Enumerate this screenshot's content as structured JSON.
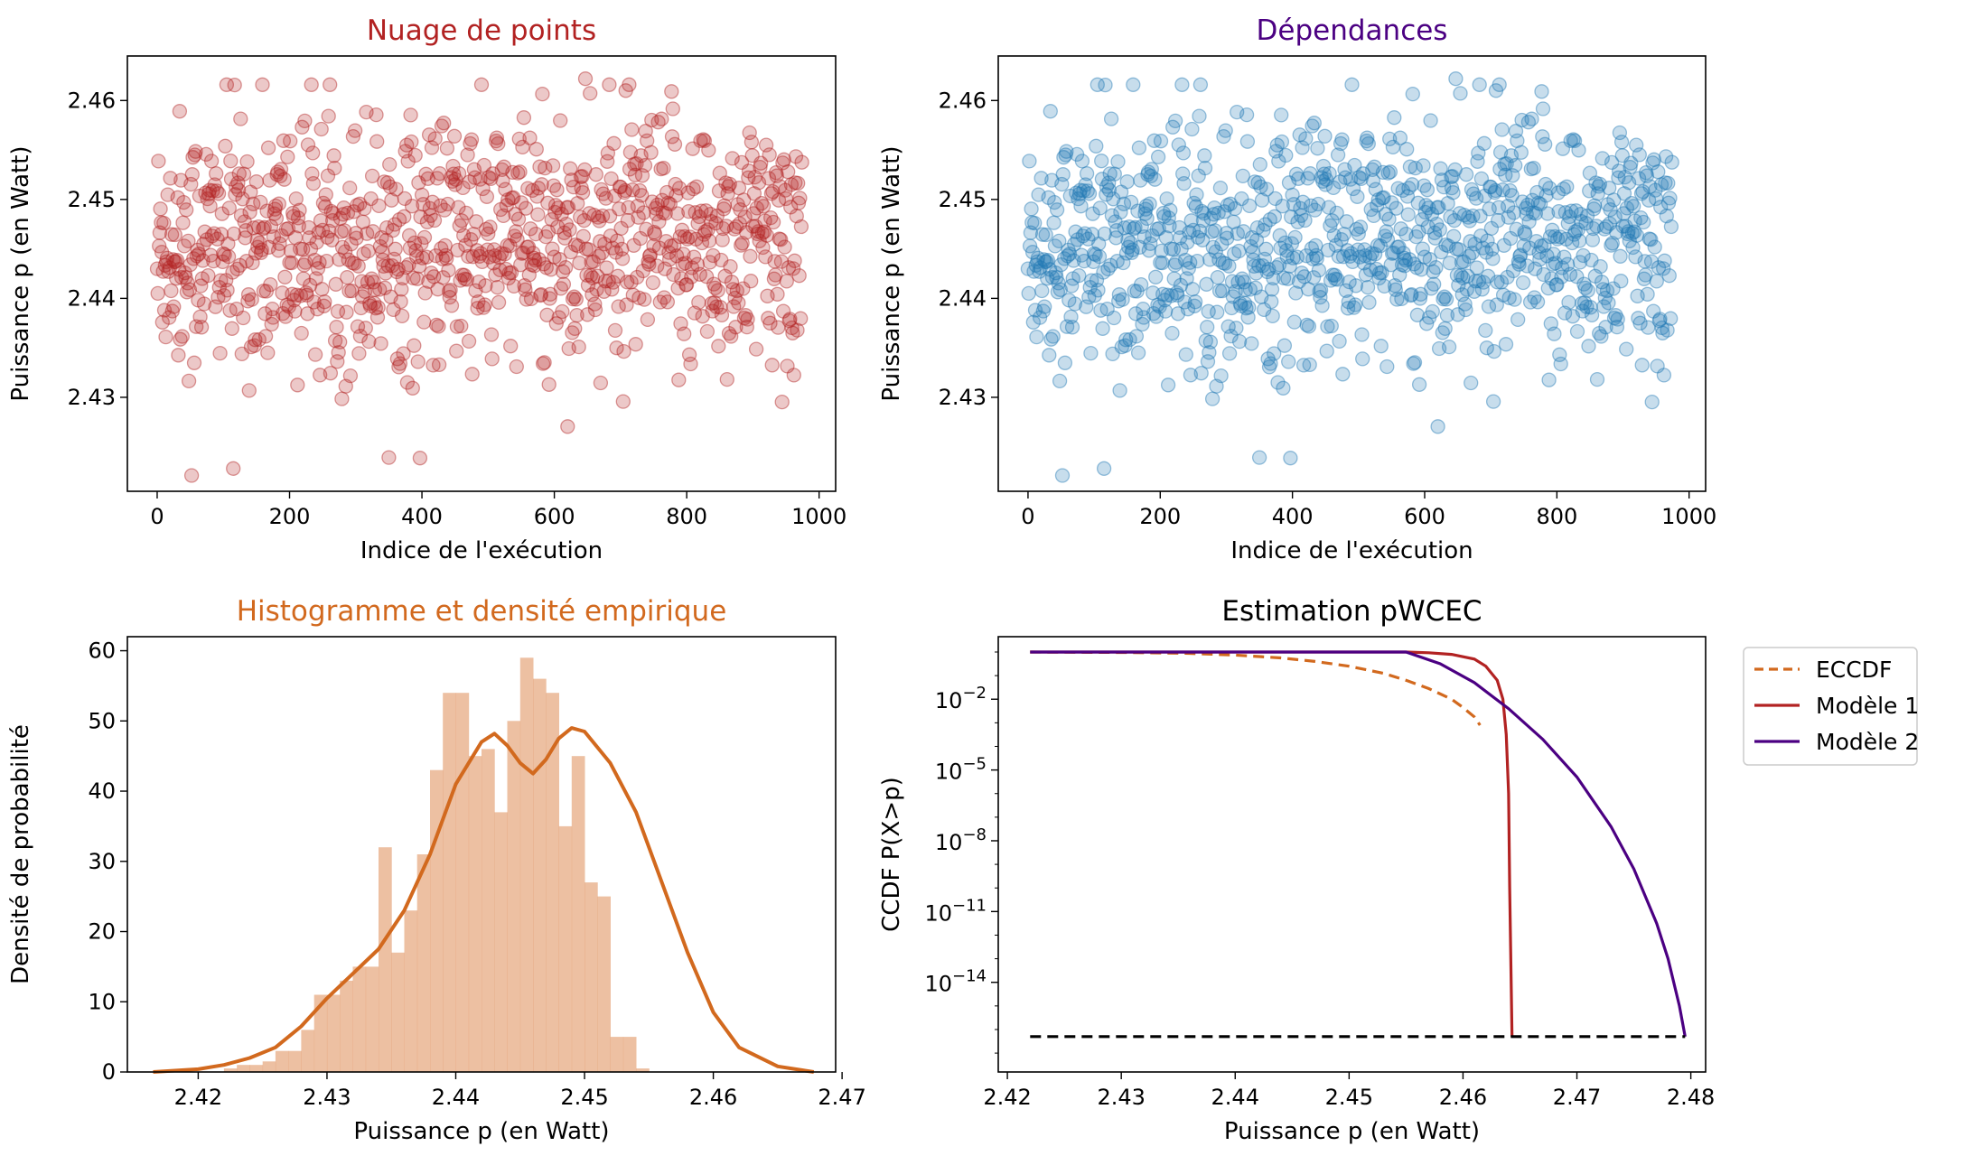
{
  "colors": {
    "scatter_red": "#b22222",
    "scatter_blue": "#1f77b4",
    "hist_fill": "#e6a57a",
    "kde": "#d2691e",
    "model1": "#b22222",
    "model2": "#4b0082",
    "title_scatter": "#b22222",
    "title_dep": "#4b0082",
    "title_hist": "#d2691e"
  },
  "chart_data": [
    {
      "type": "scatter",
      "title": "Nuage de points",
      "xlabel": "Indice de l'exécution",
      "ylabel": "Puissance p (en Watt)",
      "xlim": [
        -45,
        1025
      ],
      "ylim": [
        2.4205,
        2.4645
      ],
      "xticks": [
        "0",
        "200",
        "400",
        "600",
        "800",
        "1000"
      ],
      "yticks": [
        "2.43",
        "2.44",
        "2.45",
        "2.46"
      ],
      "points": {
        "n": 975,
        "mean": 2.4455,
        "std": 0.0068,
        "min": 2.4221,
        "max": 2.4622,
        "extremes": [
          [
            52,
            2.4221
          ],
          [
            115,
            2.4228
          ],
          [
            647,
            2.4622
          ],
          [
            1,
            2.4405
          ]
        ]
      },
      "marker_alpha": 0.25
    },
    {
      "type": "scatter",
      "title": "Dépendances",
      "xlabel": "Indice de l'exécution",
      "ylabel": "Puissance p (en Watt)",
      "xlim": [
        -45,
        1025
      ],
      "ylim": [
        2.4205,
        2.4645
      ],
      "xticks": [
        "0",
        "200",
        "400",
        "600",
        "800",
        "1000"
      ],
      "yticks": [
        "2.43",
        "2.44",
        "2.45",
        "2.46"
      ],
      "points": "same series as first panel",
      "marker_alpha": 0.25
    },
    {
      "type": "bar",
      "title": "Histogramme et densité empirique",
      "xlabel": "Puissance p (en Watt)",
      "ylabel": "Densité de probabilité",
      "xlim": [
        2.4145,
        2.4695
      ],
      "ylim": [
        0,
        62
      ],
      "xticks": [
        "2.42",
        "2.43",
        "2.44",
        "2.45",
        "2.46",
        "2.47"
      ],
      "yticks": [
        "0",
        "10",
        "20",
        "30",
        "40",
        "50",
        "60"
      ],
      "bin_start": 2.422,
      "bin_width": 0.001,
      "values": [
        0.5,
        1,
        1,
        1.5,
        3,
        3,
        6,
        11,
        11,
        13,
        15,
        15,
        32,
        17,
        23,
        31,
        43,
        54,
        54,
        45,
        46,
        37,
        50,
        59,
        56,
        54,
        35,
        45,
        27,
        25,
        5,
        5,
        0.5
      ],
      "kde": {
        "x": [
          2.4165,
          2.42,
          2.422,
          2.424,
          2.426,
          2.428,
          2.43,
          2.432,
          2.434,
          2.436,
          2.438,
          2.44,
          2.442,
          2.443,
          2.444,
          2.445,
          2.446,
          2.447,
          2.448,
          2.449,
          2.45,
          2.452,
          2.454,
          2.456,
          2.458,
          2.46,
          2.462,
          2.465,
          2.4678
        ],
        "y": [
          0,
          0.4,
          1,
          2,
          3.5,
          6.5,
          10.5,
          14,
          17.5,
          23,
          31,
          41,
          47,
          48.2,
          46.5,
          44,
          42.5,
          44.5,
          47.5,
          49,
          48.5,
          44,
          37,
          27,
          17,
          8.5,
          3.5,
          0.8,
          0
        ]
      }
    },
    {
      "type": "line",
      "title": "Estimation pWCEC",
      "xlabel": "Puissance p (en Watt)",
      "ylabel": "CCDF P(X>p)",
      "xlim": [
        2.4192,
        2.4813
      ],
      "ylog": true,
      "ylim_log10": [
        -17.8,
        0.65
      ],
      "xticks": [
        "2.42",
        "2.43",
        "2.44",
        "2.45",
        "2.46",
        "2.47",
        "2.48"
      ],
      "yticks": [
        "10^-2",
        "10^-5",
        "10^-8",
        "10^-11",
        "10^-14"
      ],
      "legend": {
        "position": "outside-right",
        "entries": [
          "ECCDF",
          "Modèle 1",
          "Modèle 2"
        ]
      },
      "series": [
        {
          "name": "ECCDF",
          "style": "dashed",
          "x": [
            2.422,
            2.43,
            2.436,
            2.44,
            2.444,
            2.447,
            2.45,
            2.453,
            2.455,
            2.457,
            2.459,
            2.46,
            2.461,
            2.4615
          ],
          "log10_y": [
            0,
            -0.02,
            -0.06,
            -0.13,
            -0.25,
            -0.4,
            -0.6,
            -0.9,
            -1.2,
            -1.55,
            -2.0,
            -2.35,
            -2.75,
            -3.1
          ]
        },
        {
          "name": "Modèle 1",
          "style": "solid",
          "x": [
            2.422,
            2.455,
            2.457,
            2.459,
            2.461,
            2.462,
            2.463,
            2.4635,
            2.4638,
            2.464,
            2.4641,
            2.4643
          ],
          "log10_y": [
            0,
            0,
            -0.03,
            -0.1,
            -0.3,
            -0.6,
            -1.2,
            -2.0,
            -3.5,
            -6,
            -10,
            -16.3
          ]
        },
        {
          "name": "Modèle 2",
          "style": "solid",
          "x": [
            2.422,
            2.455,
            2.458,
            2.461,
            2.464,
            2.467,
            2.47,
            2.473,
            2.475,
            2.477,
            2.478,
            2.479,
            2.4795
          ],
          "log10_y": [
            0,
            0,
            -0.5,
            -1.3,
            -2.4,
            -3.7,
            -5.3,
            -7.4,
            -9.2,
            -11.5,
            -13.0,
            -15.0,
            -16.3
          ]
        },
        {
          "name": "",
          "style": "dashed",
          "x": [
            2.422,
            2.4795
          ],
          "log10_y": [
            -16.3,
            -16.3
          ]
        }
      ]
    }
  ]
}
